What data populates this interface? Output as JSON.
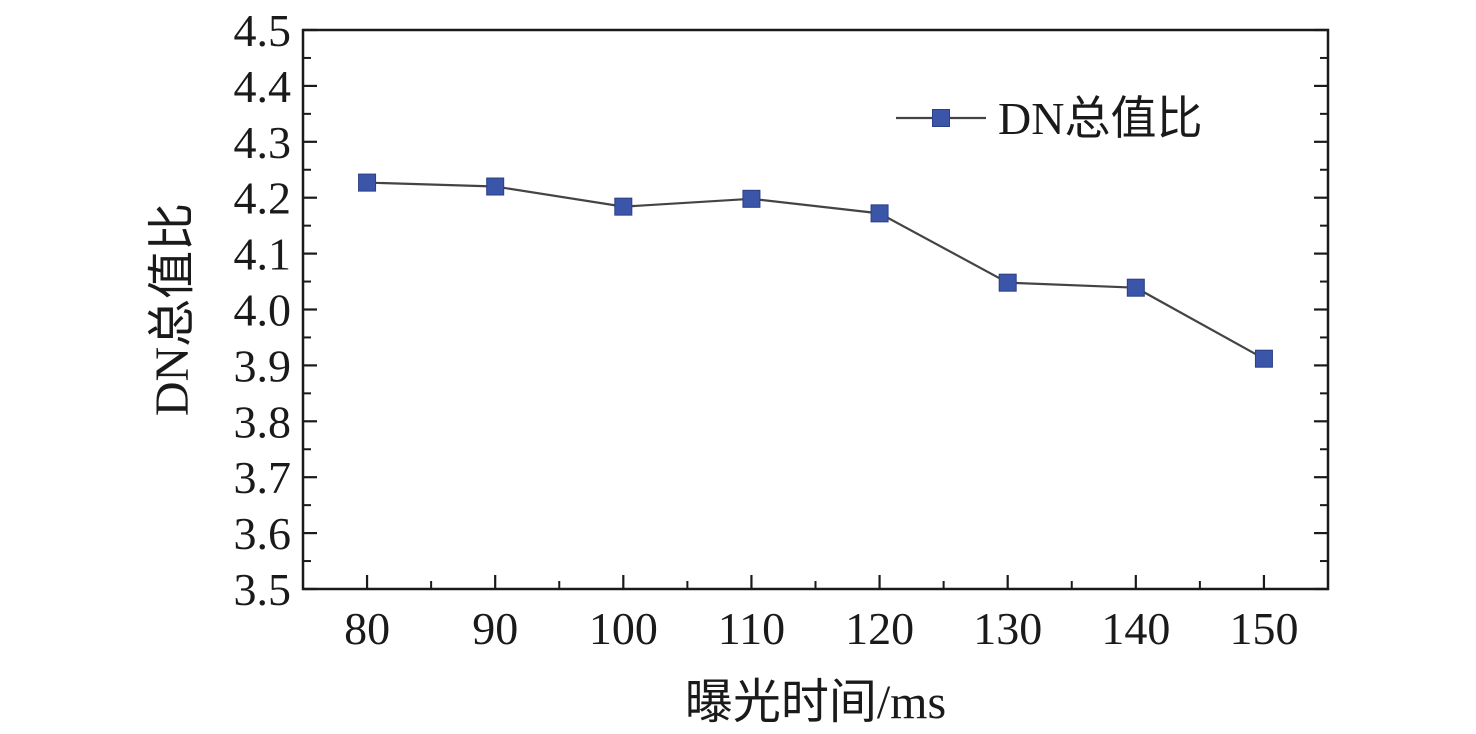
{
  "chart_data": {
    "type": "line",
    "title": "",
    "xlabel": "曝光时间/ms",
    "ylabel": "DN总值比",
    "x": [
      80,
      90,
      100,
      110,
      120,
      130,
      140,
      150
    ],
    "xticks": [
      "80",
      "90",
      "100",
      "110",
      "120",
      "130",
      "140",
      "150"
    ],
    "yticks": [
      "3.5",
      "3.6",
      "3.7",
      "3.8",
      "3.9",
      "4.0",
      "4.1",
      "4.2",
      "4.3",
      "4.4",
      "4.5"
    ],
    "xlim": [
      75,
      155
    ],
    "ylim": [
      3.5,
      4.5
    ],
    "series": [
      {
        "name": "DN总值比",
        "values": [
          4.227,
          4.22,
          4.184,
          4.198,
          4.172,
          4.048,
          4.039,
          3.912
        ]
      }
    ],
    "legend_position": "top-right",
    "grid": false,
    "line_color": "#444444",
    "marker_color": "#3b55a8",
    "marker": "square"
  }
}
